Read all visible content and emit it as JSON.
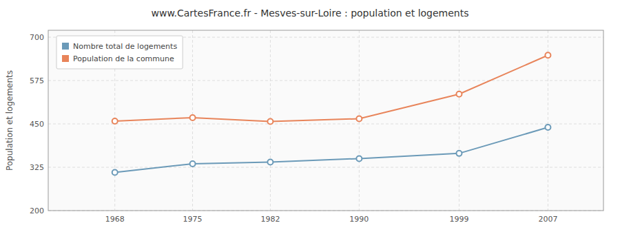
{
  "chart_data": {
    "type": "line",
    "title": "www.CartesFrance.fr - Mesves-sur-Loire : population et logements",
    "ylabel": "Population et logements",
    "x": [
      1968,
      1975,
      1982,
      1990,
      1999,
      2007
    ],
    "series": [
      {
        "name": "Nombre total de logements",
        "color": "#6b9ab8",
        "marker": "circle",
        "values": [
          310,
          335,
          340,
          350,
          365,
          440
        ]
      },
      {
        "name": "Population de la commune",
        "color": "#e8845a",
        "marker": "circle",
        "values": [
          458,
          468,
          457,
          465,
          536,
          648
        ]
      }
    ],
    "xlim": [
      1962,
      2012
    ],
    "xticks": [
      1968,
      1975,
      1982,
      1990,
      1999,
      2007
    ],
    "ylim": [
      200,
      720
    ],
    "yticks": [
      200,
      325,
      450,
      575,
      700
    ],
    "grid": true,
    "legend": "upper left"
  }
}
